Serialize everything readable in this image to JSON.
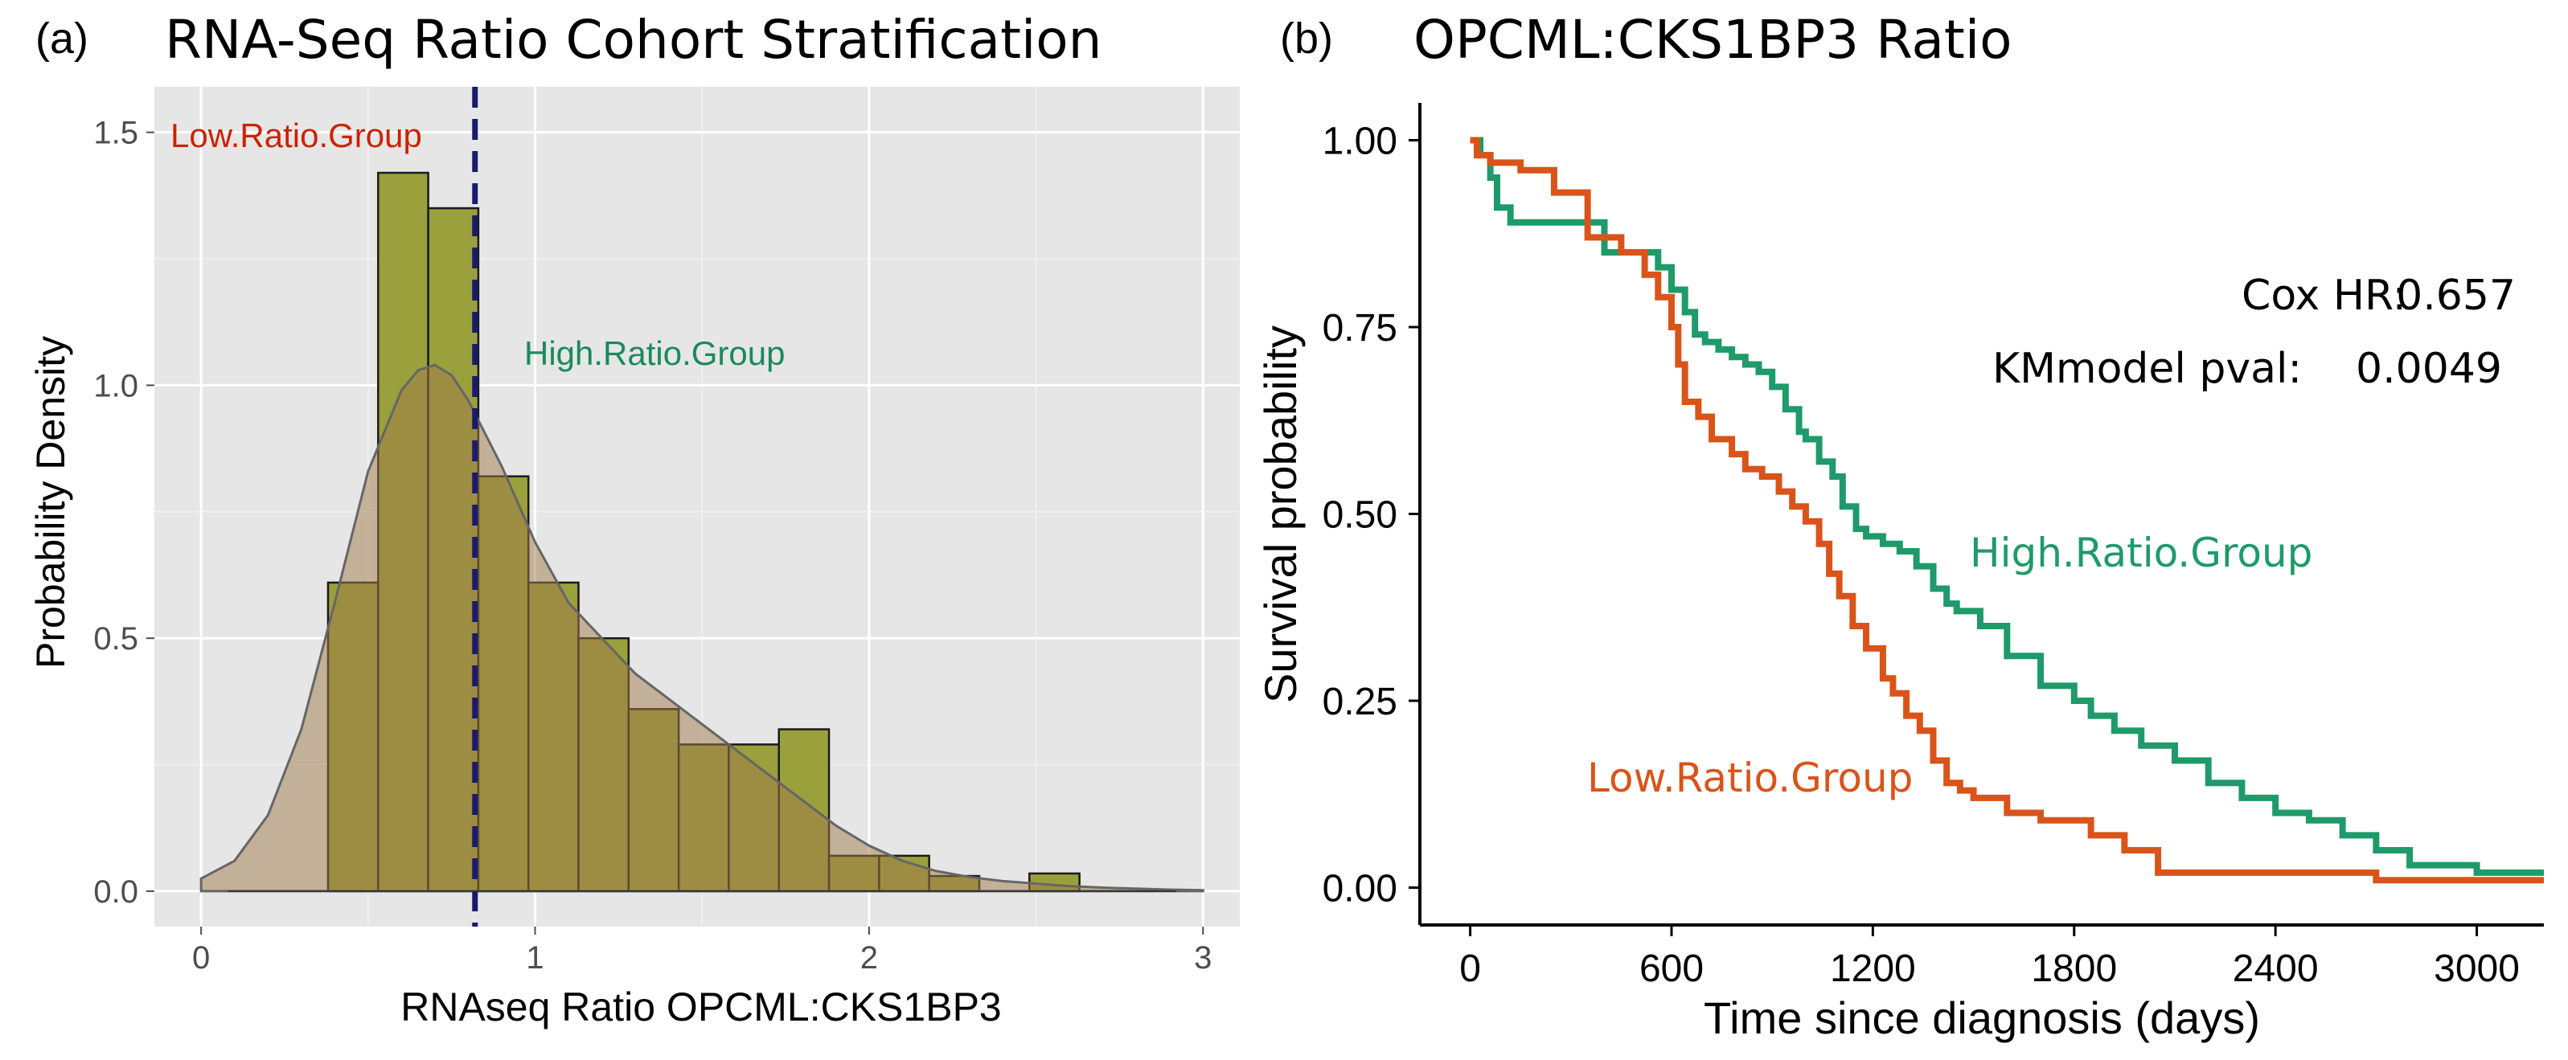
{
  "chart_data": [
    {
      "type": "histogram",
      "panel_label": "(a)",
      "title": "RNA-Seq Ratio Cohort Stratification",
      "xlabel": "RNAseq Ratio OPCML:CKS1BP3",
      "ylabel": "Probability Density",
      "xlim": [
        -0.14,
        3.11
      ],
      "ylim": [
        -0.07,
        1.59
      ],
      "xticks": [
        0,
        1,
        2,
        3
      ],
      "xtick_labels": [
        "0",
        "1",
        "2",
        "3"
      ],
      "yticks": [
        0.0,
        0.5,
        1.0,
        1.5
      ],
      "ytick_labels": [
        "0.0",
        "0.5",
        "1.0",
        "1.5"
      ],
      "bin_width": 0.15,
      "bins": [
        {
          "x0": 0.38,
          "density": 0.61
        },
        {
          "x0": 0.53,
          "density": 1.42
        },
        {
          "x0": 0.68,
          "density": 1.35
        },
        {
          "x0": 0.83,
          "density": 0.82
        },
        {
          "x0": 0.98,
          "density": 0.61
        },
        {
          "x0": 1.13,
          "density": 0.5
        },
        {
          "x0": 1.28,
          "density": 0.36
        },
        {
          "x0": 1.43,
          "density": 0.29
        },
        {
          "x0": 1.58,
          "density": 0.29
        },
        {
          "x0": 1.73,
          "density": 0.32
        },
        {
          "x0": 1.88,
          "density": 0.07
        },
        {
          "x0": 2.03,
          "density": 0.07
        },
        {
          "x0": 2.18,
          "density": 0.03
        },
        {
          "x0": 2.33,
          "density": 0.0
        },
        {
          "x0": 2.48,
          "density": 0.035
        }
      ],
      "density_curve": {
        "x": [
          0.0,
          0.1,
          0.2,
          0.3,
          0.4,
          0.5,
          0.6,
          0.65,
          0.7,
          0.75,
          0.8,
          0.9,
          1.0,
          1.1,
          1.2,
          1.3,
          1.4,
          1.5,
          1.6,
          1.7,
          1.8,
          1.9,
          2.0,
          2.1,
          2.2,
          2.3,
          2.4,
          2.5,
          2.6,
          2.7,
          2.8,
          2.9,
          3.0
        ],
        "y": [
          0.025,
          0.06,
          0.15,
          0.32,
          0.57,
          0.83,
          0.99,
          1.03,
          1.04,
          1.02,
          0.97,
          0.84,
          0.69,
          0.57,
          0.5,
          0.43,
          0.38,
          0.33,
          0.28,
          0.23,
          0.18,
          0.13,
          0.09,
          0.06,
          0.04,
          0.028,
          0.02,
          0.015,
          0.01,
          0.007,
          0.005,
          0.003,
          0.002
        ]
      },
      "threshold": 0.82,
      "annotations": [
        {
          "text": "Low.Ratio.Group",
          "color": "#cc2200"
        },
        {
          "text": "High.Ratio.Group",
          "color": "#1a8a5c"
        }
      ],
      "colors": {
        "panel_bg": "#e6e6e6",
        "grid": "#ffffff",
        "bar_fill": "#9aa03b",
        "density_fill": "#a07a4a",
        "threshold": "#1a1a6e"
      }
    },
    {
      "type": "line",
      "subtype": "kaplan-meier",
      "panel_label": "(b)",
      "title": "OPCML:CKS1BP3  Ratio",
      "xlabel": "Time since diagnosis (days)",
      "ylabel": "Survival probability",
      "xlim": [
        -150,
        3200
      ],
      "ylim": [
        -0.05,
        1.05
      ],
      "xticks": [
        0,
        600,
        1200,
        1800,
        2400,
        3000
      ],
      "xtick_labels": [
        "0",
        "600",
        "1200",
        "1800",
        "2400",
        "3000"
      ],
      "yticks": [
        0.0,
        0.25,
        0.5,
        0.75,
        1.0
      ],
      "ytick_labels": [
        "0.00",
        "0.25",
        "0.50",
        "0.75",
        "1.00"
      ],
      "series": [
        {
          "name": "High.Ratio.Group",
          "color": "#1f9a6a",
          "times": [
            0,
            30,
            60,
            80,
            120,
            350,
            400,
            560,
            600,
            640,
            670,
            700,
            740,
            780,
            820,
            860,
            900,
            940,
            980,
            1000,
            1040,
            1080,
            1110,
            1150,
            1180,
            1230,
            1280,
            1330,
            1380,
            1420,
            1450,
            1520,
            1600,
            1700,
            1800,
            1850,
            1920,
            2000,
            2100,
            2200,
            2300,
            2400,
            2500,
            2600,
            2700,
            2800,
            2900,
            3000,
            3200
          ],
          "surv": [
            1.0,
            0.98,
            0.95,
            0.91,
            0.89,
            0.89,
            0.85,
            0.83,
            0.8,
            0.77,
            0.74,
            0.73,
            0.72,
            0.71,
            0.7,
            0.69,
            0.67,
            0.64,
            0.61,
            0.6,
            0.57,
            0.55,
            0.51,
            0.48,
            0.47,
            0.46,
            0.45,
            0.43,
            0.4,
            0.38,
            0.37,
            0.35,
            0.31,
            0.27,
            0.25,
            0.23,
            0.21,
            0.19,
            0.17,
            0.14,
            0.12,
            0.1,
            0.09,
            0.07,
            0.05,
            0.03,
            0.03,
            0.02,
            0.02
          ]
        },
        {
          "name": "Low.Ratio.Group",
          "color": "#d9541a",
          "times": [
            0,
            20,
            60,
            150,
            250,
            350,
            450,
            520,
            560,
            600,
            620,
            640,
            680,
            720,
            780,
            820,
            870,
            920,
            960,
            1000,
            1040,
            1070,
            1100,
            1140,
            1180,
            1230,
            1260,
            1300,
            1340,
            1380,
            1420,
            1460,
            1500,
            1600,
            1700,
            1850,
            1950,
            2050,
            2200,
            2400,
            2700,
            3200
          ],
          "surv": [
            1.0,
            0.98,
            0.97,
            0.96,
            0.93,
            0.87,
            0.85,
            0.82,
            0.79,
            0.75,
            0.7,
            0.65,
            0.63,
            0.6,
            0.58,
            0.56,
            0.55,
            0.53,
            0.51,
            0.49,
            0.46,
            0.42,
            0.39,
            0.35,
            0.32,
            0.28,
            0.26,
            0.23,
            0.21,
            0.17,
            0.14,
            0.13,
            0.12,
            0.1,
            0.09,
            0.07,
            0.05,
            0.02,
            0.02,
            0.02,
            0.01,
            0.01
          ]
        }
      ],
      "annotations": {
        "cox_hr_label": "Cox HR:",
        "cox_hr_value": "0.657",
        "km_pval_label": "KMmodel pval:",
        "km_pval_value": "0.0049",
        "high_label": "High.Ratio.Group",
        "low_label": "Low.Ratio.Group"
      }
    }
  ]
}
